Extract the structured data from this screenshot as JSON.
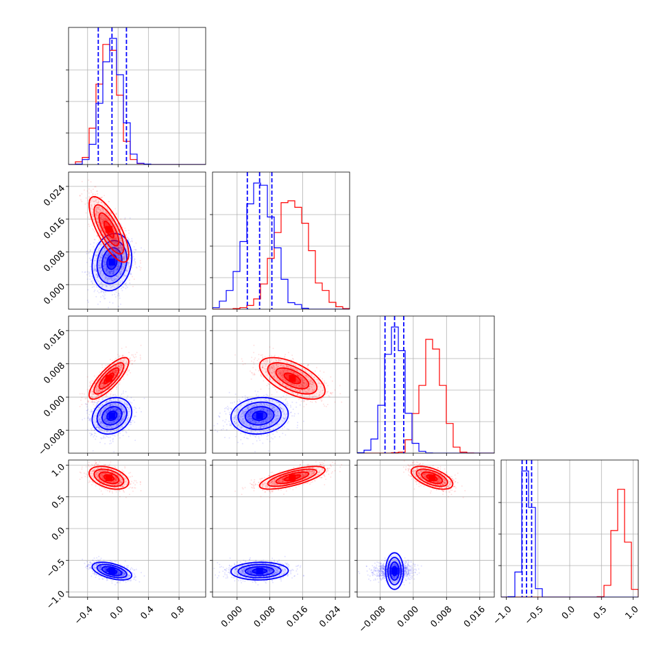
{
  "chart_data": {
    "type": "corner",
    "grid": true,
    "colors": {
      "blue": "#0000ff",
      "red": "#ff0000"
    },
    "series": [
      {
        "color_key": "blue",
        "means": [
          -0.08,
          0.0055,
          -0.0045,
          -0.67
        ],
        "sd": [
          0.13,
          0.0035,
          0.0022,
          0.07
        ],
        "quantiles": [
          [
            -0.26,
            -0.08,
            0.11
          ],
          [
            0.0025,
            0.0055,
            0.0085
          ],
          [
            -0.0068,
            -0.0045,
            -0.0023
          ],
          [
            -0.75,
            -0.68,
            -0.6
          ]
        ],
        "corr": [
          [
            1,
            0.15,
            0.2,
            -0.5
          ],
          [
            0.15,
            1,
            0.1,
            0.05
          ],
          [
            0.2,
            0.1,
            1,
            0.0
          ],
          [
            -0.5,
            0.05,
            0.0,
            1
          ]
        ]
      },
      {
        "color_key": "red",
        "means": [
          -0.12,
          0.0135,
          0.0045,
          0.8
        ],
        "sd": [
          0.13,
          0.004,
          0.0025,
          0.09
        ],
        "corr": [
          [
            1,
            -0.75,
            0.8,
            -0.4
          ],
          [
            -0.75,
            1,
            -0.6,
            0.7
          ],
          [
            0.8,
            -0.6,
            1,
            -0.55
          ],
          [
            -0.4,
            0.7,
            -0.55,
            1
          ]
        ]
      }
    ],
    "axes": [
      {
        "range": [
          -0.65,
          1.15
        ],
        "ticks": [
          -0.4,
          0.0,
          0.4,
          0.8
        ],
        "tick_labels": [
          "−0.4",
          "0.0",
          "0.4",
          "0.8"
        ]
      },
      {
        "range": [
          -0.006,
          0.0275
        ],
        "ticks": [
          0.0,
          0.008,
          0.016,
          0.024
        ],
        "tick_labels": [
          "0.000",
          "0.008",
          "0.016",
          "0.024"
        ]
      },
      {
        "range": [
          -0.0135,
          0.0195
        ],
        "ticks": [
          -0.008,
          0.0,
          0.008,
          0.016
        ],
        "tick_labels": [
          "−0.008",
          "0.000",
          "0.008",
          "0.016"
        ]
      },
      {
        "range": [
          -1.08,
          1.08
        ],
        "ticks": [
          -1.0,
          -0.5,
          0.0,
          0.5,
          1.0
        ],
        "tick_labels": [
          "−1.0",
          "−0.5",
          "0.0",
          "0.5",
          "1.0"
        ]
      }
    ]
  }
}
